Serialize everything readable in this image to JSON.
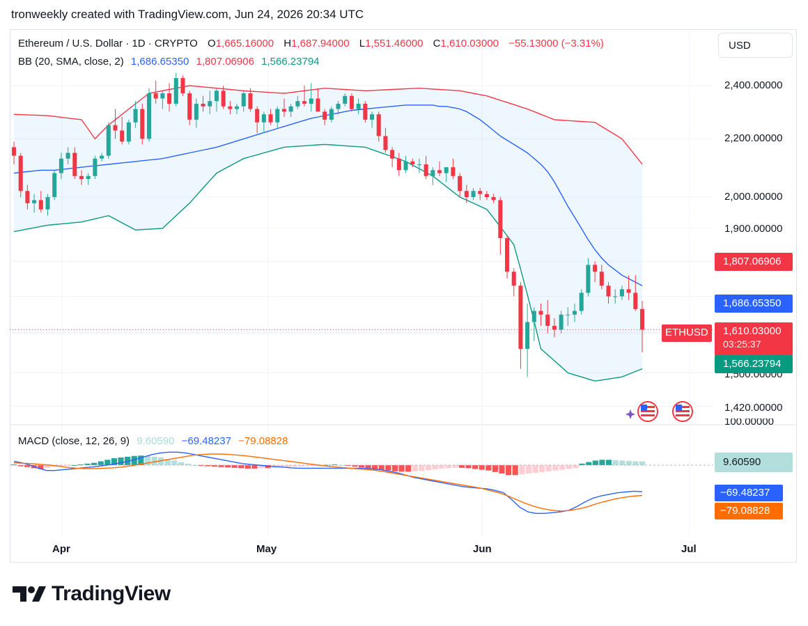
{
  "header": {
    "text": "tronweekly created with TradingView.com, Jun 24, 2026 20:34 UTC"
  },
  "currency_button": "USD",
  "legend": {
    "symbol": "Ethereum / U.S. Dollar · 1D · CRYPTO",
    "o_label": "O",
    "o_value": "1,665.16000",
    "h_label": "H",
    "h_value": "1,687.94000",
    "l_label": "L",
    "l_value": "1,551.46000",
    "c_label": "C",
    "c_value": "1,610.03000",
    "change": "−55.13000 (−3.31%)"
  },
  "bb_legend": {
    "name": "BB (20, SMA, close, 2)",
    "basis": "1,686.65350",
    "upper": "1,807.06906",
    "lower": "1,566.23794"
  },
  "macd_legend": {
    "name": "MACD (close, 12, 26, 9)",
    "hist": "9.60590",
    "macd": "−69.48237",
    "signal": "−79.08828"
  },
  "price_axis": {
    "labels": [
      "2,400.00000",
      "2,200.00000",
      "2,000.00000",
      "1,900.00000",
      "1,500.00000",
      "1,420.00000",
      "100.00000"
    ]
  },
  "tags": {
    "upper": "1,807.06906",
    "basis": "1,686.65350",
    "symbol": "ETHUSD",
    "last": "1,610.03000",
    "countdown": "03:25:37",
    "lower": "1,566.23794",
    "hist": "9.60590",
    "macd": "−69.48237",
    "signal": "−79.08828"
  },
  "time_axis": {
    "labels": [
      "Apr",
      "May",
      "Jun",
      "Jul"
    ]
  },
  "brand": "TradingView",
  "colors": {
    "up": "#26a69a",
    "down": "#f23645",
    "basis": "#2962ff",
    "upper": "#f23645",
    "lower": "#089981",
    "macd": "#2962ff",
    "signal": "#ff6d00",
    "band_fill": "#2196f3"
  },
  "chart_data": [
    {
      "type": "candlestick",
      "title": "Ethereum / U.S. Dollar · 1D · CRYPTO",
      "xlabel": "",
      "ylabel": "USD",
      "scale": "log",
      "ylim": [
        1420,
        2450
      ],
      "x_ticks": [
        "Apr",
        "May",
        "Jun",
        "Jul"
      ],
      "last_ohlc": {
        "open": 1665.16,
        "high": 1687.94,
        "low": 1551.46,
        "close": 1610.03,
        "change": -55.13,
        "change_pct": -3.31
      },
      "candles": [
        [
          2170,
          2190,
          2110,
          2140
        ],
        [
          2140,
          2150,
          2000,
          2020
        ],
        [
          2020,
          2040,
          1960,
          1980
        ],
        [
          1980,
          2010,
          1950,
          1990
        ],
        [
          1990,
          2020,
          1950,
          1960
        ],
        [
          1960,
          2010,
          1940,
          2000
        ],
        [
          2000,
          2090,
          1990,
          2080
        ],
        [
          2080,
          2150,
          2060,
          2130
        ],
        [
          2130,
          2170,
          2110,
          2150
        ],
        [
          2150,
          2170,
          2060,
          2070
        ],
        [
          2070,
          2090,
          2040,
          2060
        ],
        [
          2060,
          2080,
          2040,
          2070
        ],
        [
          2070,
          2140,
          2060,
          2130
        ],
        [
          2130,
          2150,
          2120,
          2140
        ],
        [
          2140,
          2260,
          2130,
          2250
        ],
        [
          2250,
          2310,
          2200,
          2230
        ],
        [
          2230,
          2280,
          2180,
          2190
        ],
        [
          2190,
          2270,
          2180,
          2260
        ],
        [
          2260,
          2340,
          2240,
          2310
        ],
        [
          2310,
          2330,
          2180,
          2200
        ],
        [
          2200,
          2390,
          2190,
          2370
        ],
        [
          2370,
          2420,
          2330,
          2350
        ],
        [
          2350,
          2380,
          2310,
          2370
        ],
        [
          2370,
          2410,
          2300,
          2330
        ],
        [
          2330,
          2450,
          2320,
          2430
        ],
        [
          2430,
          2440,
          2360,
          2370
        ],
        [
          2370,
          2380,
          2250,
          2270
        ],
        [
          2270,
          2350,
          2240,
          2330
        ],
        [
          2330,
          2360,
          2300,
          2320
        ],
        [
          2320,
          2380,
          2290,
          2340
        ],
        [
          2340,
          2390,
          2300,
          2380
        ],
        [
          2380,
          2400,
          2310,
          2320
        ],
        [
          2320,
          2340,
          2290,
          2310
        ],
        [
          2310,
          2330,
          2290,
          2320
        ],
        [
          2320,
          2380,
          2300,
          2370
        ],
        [
          2370,
          2390,
          2300,
          2310
        ],
        [
          2310,
          2320,
          2220,
          2260
        ],
        [
          2260,
          2300,
          2220,
          2290
        ],
        [
          2290,
          2310,
          2250,
          2260
        ],
        [
          2260,
          2320,
          2240,
          2310
        ],
        [
          2310,
          2350,
          2280,
          2300
        ],
        [
          2300,
          2330,
          2280,
          2320
        ],
        [
          2320,
          2360,
          2310,
          2340
        ],
        [
          2340,
          2400,
          2320,
          2330
        ],
        [
          2330,
          2410,
          2300,
          2350
        ],
        [
          2350,
          2390,
          2300,
          2300
        ],
        [
          2300,
          2310,
          2250,
          2270
        ],
        [
          2270,
          2320,
          2260,
          2310
        ],
        [
          2310,
          2340,
          2290,
          2330
        ],
        [
          2330,
          2370,
          2320,
          2360
        ],
        [
          2360,
          2370,
          2300,
          2310
        ],
        [
          2310,
          2350,
          2290,
          2330
        ],
        [
          2330,
          2340,
          2260,
          2270
        ],
        [
          2270,
          2300,
          2240,
          2290
        ],
        [
          2290,
          2300,
          2190,
          2210
        ],
        [
          2210,
          2240,
          2150,
          2160
        ],
        [
          2160,
          2170,
          2100,
          2130
        ],
        [
          2130,
          2150,
          2070,
          2090
        ],
        [
          2090,
          2140,
          2080,
          2120
        ],
        [
          2120,
          2130,
          2100,
          2110
        ],
        [
          2110,
          2130,
          2080,
          2110
        ],
        [
          2110,
          2140,
          2060,
          2070
        ],
        [
          2070,
          2100,
          2040,
          2090
        ],
        [
          2090,
          2120,
          2070,
          2080
        ],
        [
          2080,
          2100,
          2050,
          2100
        ],
        [
          2100,
          2130,
          2060,
          2070
        ],
        [
          2070,
          2080,
          2000,
          2020
        ],
        [
          2020,
          2040,
          1980,
          2000
        ],
        [
          2000,
          2030,
          1990,
          2020
        ],
        [
          2020,
          2030,
          1990,
          2010
        ],
        [
          2010,
          2020,
          1990,
          2000
        ],
        [
          2000,
          2010,
          1980,
          1990
        ],
        [
          1990,
          2000,
          1820,
          1870
        ],
        [
          1870,
          1880,
          1750,
          1770
        ],
        [
          1770,
          1780,
          1700,
          1730
        ],
        [
          1730,
          1740,
          1510,
          1560
        ],
        [
          1560,
          1680,
          1490,
          1630
        ],
        [
          1630,
          1670,
          1580,
          1660
        ],
        [
          1660,
          1680,
          1620,
          1650
        ],
        [
          1650,
          1690,
          1600,
          1620
        ],
        [
          1620,
          1640,
          1590,
          1610
        ],
        [
          1610,
          1660,
          1600,
          1650
        ],
        [
          1650,
          1670,
          1620,
          1650
        ],
        [
          1650,
          1680,
          1630,
          1660
        ],
        [
          1660,
          1720,
          1650,
          1710
        ],
        [
          1710,
          1810,
          1700,
          1790
        ],
        [
          1790,
          1800,
          1740,
          1770
        ],
        [
          1770,
          1790,
          1720,
          1730
        ],
        [
          1730,
          1740,
          1680,
          1700
        ],
        [
          1700,
          1720,
          1680,
          1700
        ],
        [
          1700,
          1730,
          1690,
          1720
        ],
        [
          1720,
          1760,
          1690,
          1710
        ],
        [
          1710,
          1760,
          1660,
          1665
        ],
        [
          1665.16,
          1687.94,
          1551.46,
          1610.03
        ]
      ],
      "bollinger": {
        "settings": "BB (20, SMA, close, 2)",
        "last": {
          "basis": 1686.6535,
          "upper": 1807.06906,
          "lower": 1566.23794
        },
        "basis": [
          2080,
          2085,
          2090,
          2090,
          2095,
          2100,
          2105,
          2110,
          2115,
          2120,
          2125,
          2130,
          2140,
          2150,
          2160,
          2170,
          2185,
          2200,
          2215,
          2230,
          2245,
          2260,
          2275,
          2285,
          2295,
          2305,
          2310,
          2315,
          2320,
          2325,
          2325,
          2325,
          2325,
          2320,
          2320,
          2315,
          2310,
          2300,
          2285,
          2270,
          2250,
          2230,
          2210,
          2195,
          2180,
          2165,
          2150,
          2130,
          2110,
          2085,
          2050,
          2010,
          1970,
          1935,
          1900,
          1865,
          1835,
          1810,
          1790,
          1775,
          1760,
          1750,
          1740,
          1730,
          1722,
          1715,
          1708,
          1700,
          1692,
          1688,
          1686.65
        ],
        "basis_x": [
          0,
          2,
          4,
          6,
          8,
          10,
          12,
          14,
          16,
          18,
          20,
          22,
          24,
          26,
          28,
          30,
          32,
          34,
          36,
          38,
          40,
          42,
          44,
          46,
          48,
          50,
          52,
          54,
          56,
          58,
          60,
          61,
          62,
          63,
          64,
          65,
          66,
          67,
          68,
          69,
          70,
          71,
          72,
          73,
          74,
          75,
          76,
          77,
          78,
          79,
          80,
          81,
          82,
          83,
          84,
          85,
          86,
          87,
          88,
          89,
          90,
          91,
          92,
          93,
          94,
          95,
          96,
          97,
          98,
          99,
          100
        ],
        "upper_points": [
          [
            0,
            2290
          ],
          [
            5,
            2285
          ],
          [
            10,
            2270
          ],
          [
            12,
            2200
          ],
          [
            14,
            2250
          ],
          [
            20,
            2370
          ],
          [
            26,
            2400
          ],
          [
            34,
            2380
          ],
          [
            40,
            2370
          ],
          [
            46,
            2390
          ],
          [
            52,
            2380
          ],
          [
            60,
            2390
          ],
          [
            66,
            2380
          ],
          [
            70,
            2360
          ],
          [
            76,
            2310
          ],
          [
            80,
            2270
          ],
          [
            86,
            2260
          ],
          [
            90,
            2200
          ],
          [
            95,
            2050
          ],
          [
            99,
            1860
          ],
          [
            100,
            1807.07
          ]
        ],
        "lower_points": [
          [
            0,
            1890
          ],
          [
            5,
            1910
          ],
          [
            10,
            1920
          ],
          [
            14,
            1940
          ],
          [
            18,
            1895
          ],
          [
            22,
            1900
          ],
          [
            26,
            1980
          ],
          [
            30,
            2080
          ],
          [
            34,
            2130
          ],
          [
            40,
            2170
          ],
          [
            46,
            2180
          ],
          [
            52,
            2170
          ],
          [
            58,
            2120
          ],
          [
            62,
            2070
          ],
          [
            66,
            2000
          ],
          [
            70,
            1960
          ],
          [
            74,
            1850
          ],
          [
            78,
            1560
          ],
          [
            82,
            1500
          ],
          [
            86,
            1480
          ],
          [
            90,
            1490
          ],
          [
            96,
            1530
          ],
          [
            100,
            1566.24
          ]
        ]
      }
    },
    {
      "type": "macd",
      "title": "MACD (close, 12, 26, 9)",
      "last": {
        "histogram": 9.6059,
        "macd": -69.48237,
        "signal": -79.08828
      },
      "histogram": [
        2,
        -3,
        -5,
        -8,
        -10,
        -7,
        -4,
        -2,
        -1,
        0,
        2,
        4,
        6,
        10,
        14,
        18,
        20,
        22,
        24,
        25,
        24,
        22,
        20,
        16,
        12,
        8,
        4,
        0,
        -2,
        -3,
        -4,
        -5,
        -6,
        -7,
        -8,
        -9,
        -9,
        -8,
        -8,
        -7,
        -6,
        -5,
        -4,
        -3,
        -2,
        -1,
        0,
        1,
        2,
        0,
        -2,
        -4,
        -6,
        -8,
        -10,
        -12,
        -14,
        -16,
        -17,
        -17,
        -16,
        -15,
        -13,
        -11,
        -9,
        -8,
        -7,
        -7,
        -8,
        -10,
        -12,
        -14,
        -18,
        -22,
        -26,
        -26,
        -24,
        -22,
        -20,
        -18,
        -16,
        -14,
        -12,
        -10,
        -8,
        4,
        8,
        12,
        14,
        14,
        13,
        12,
        11,
        10,
        9.61
      ],
      "macd": [
        10,
        6,
        0,
        -8,
        -14,
        -14,
        -12,
        -10,
        -8,
        -6,
        -4,
        -1,
        2,
        6,
        10,
        16,
        22,
        28,
        32,
        34,
        34,
        32,
        28,
        24,
        20,
        16,
        12,
        8,
        4,
        2,
        0,
        -2,
        -4,
        -5,
        -7,
        -8,
        -8,
        -8,
        -8,
        -8,
        -8,
        -8,
        -8,
        -8,
        -10,
        -12,
        -16,
        -20,
        -26,
        -32,
        -36,
        -40,
        -44,
        -48,
        -52,
        -56,
        -58,
        -60,
        -62,
        -66,
        -72,
        -90,
        -110,
        -122,
        -126,
        -126,
        -124,
        -122,
        -118,
        -108,
        -96,
        -86,
        -80,
        -76,
        -72,
        -70,
        -68,
        -69.48
      ],
      "signal": [
        6,
        5,
        4,
        2,
        0,
        -3,
        -6,
        -8,
        -9,
        -9,
        -8,
        -7,
        -5,
        -2,
        2,
        6,
        10,
        14,
        18,
        22,
        26,
        28,
        29,
        29,
        28,
        26,
        24,
        21,
        18,
        15,
        12,
        9,
        6,
        3,
        0,
        -3,
        -5,
        -7,
        -9,
        -11,
        -13,
        -16,
        -20,
        -24,
        -28,
        -32,
        -36,
        -40,
        -44,
        -48,
        -52,
        -56,
        -60,
        -66,
        -72,
        -80,
        -90,
        -100,
        -108,
        -114,
        -118,
        -120,
        -118,
        -114,
        -108,
        -100,
        -94,
        -88,
        -84,
        -81,
        -79.09
      ]
    }
  ]
}
